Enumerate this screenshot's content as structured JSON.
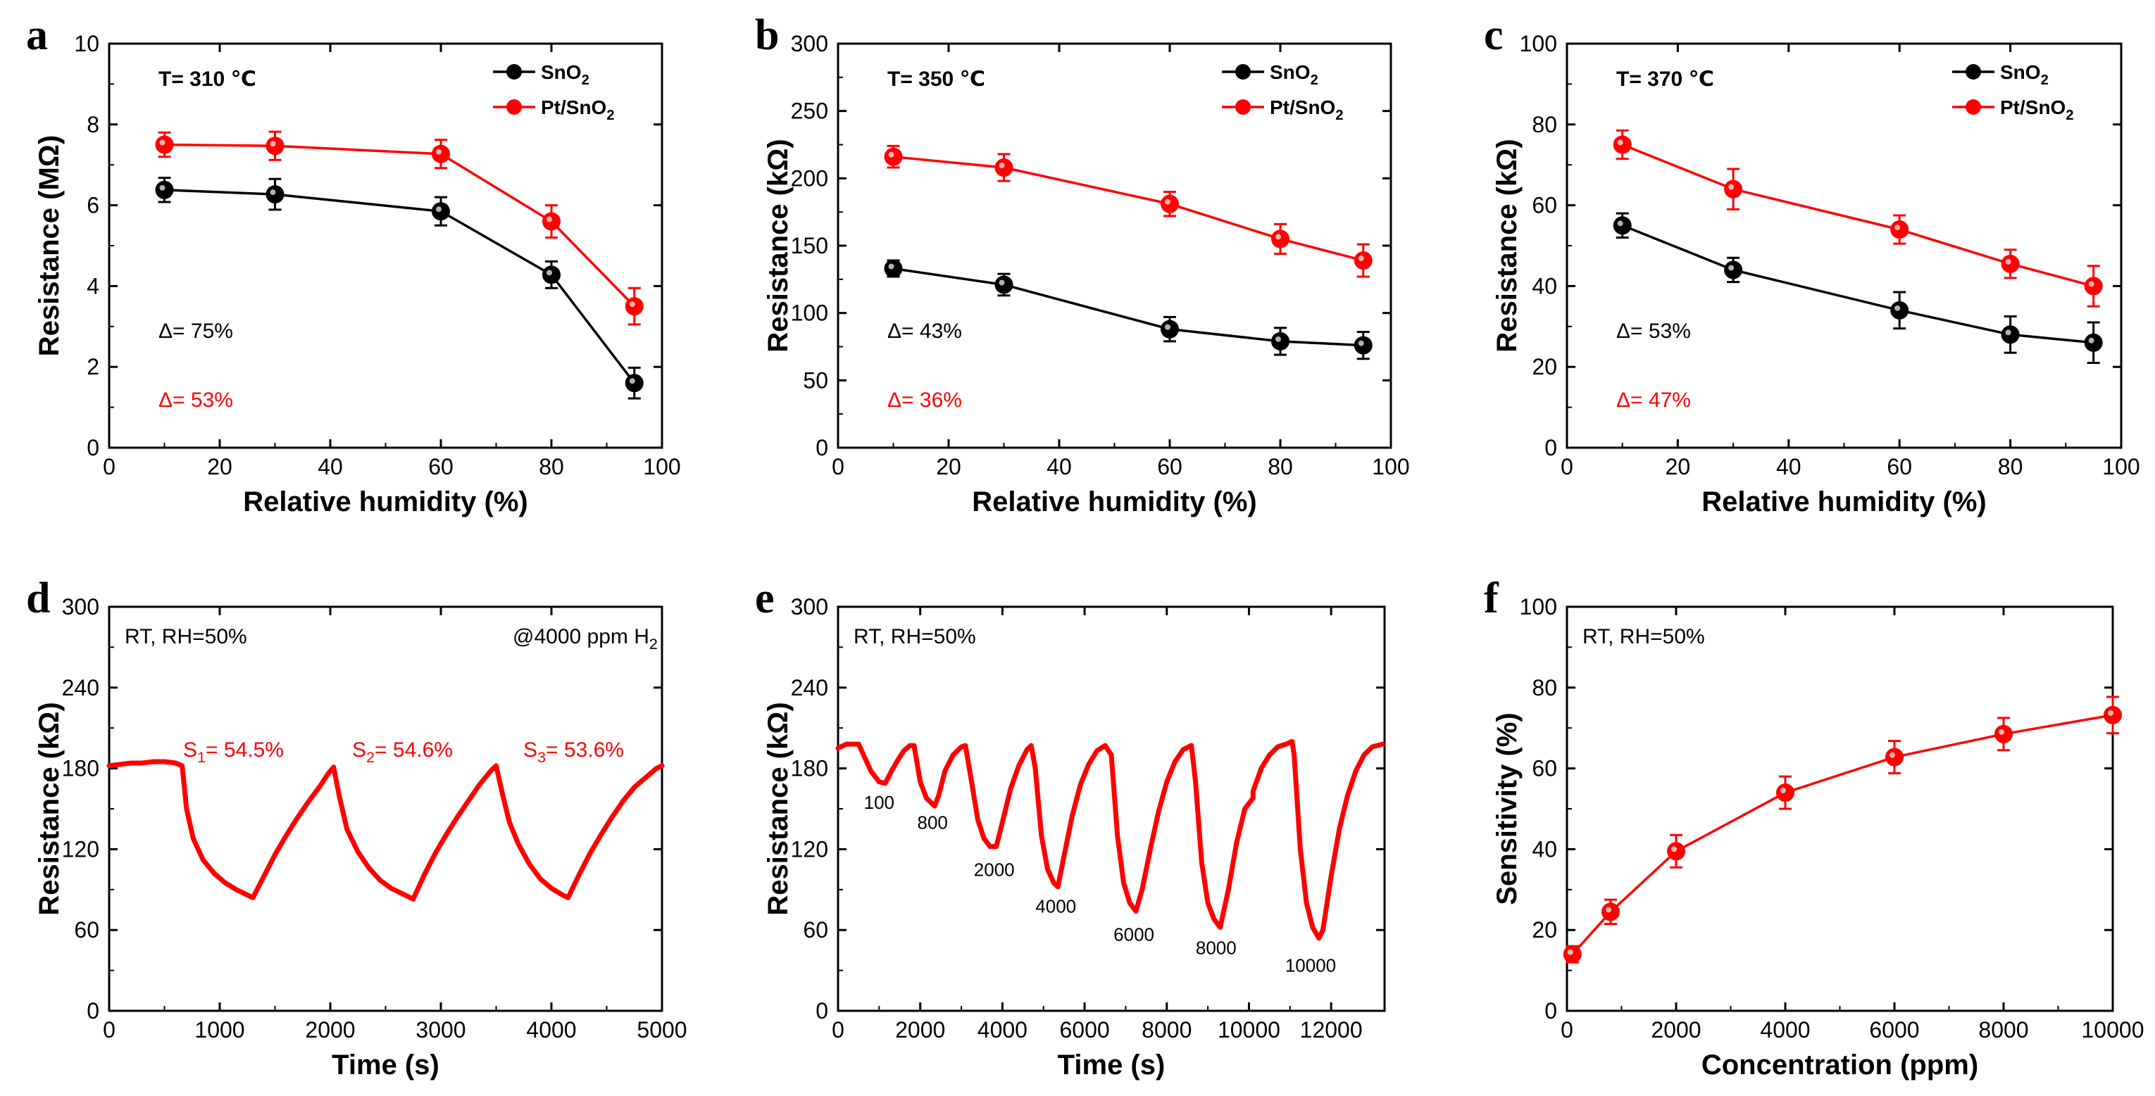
{
  "colors": {
    "snO2": "#000000",
    "ptSnO2": "#ff0000"
  },
  "chart_data": [
    {
      "id": "a",
      "panel_label": "a",
      "type": "line",
      "xlabel": "Relative humidity (%)",
      "ylabel": "Resistance (MΩ)",
      "xlim": [
        0,
        100
      ],
      "ylim": [
        0,
        10
      ],
      "xticks": [
        "0",
        "20",
        "40",
        "60",
        "80",
        "100"
      ],
      "yticks": [
        "0",
        "2",
        "4",
        "6",
        "8",
        "10"
      ],
      "condition": "T= 310 ℃",
      "x": [
        10,
        30,
        60,
        80,
        95
      ],
      "series": [
        {
          "name": "SnO2",
          "legend_main": "SnO",
          "legend_sub": "2",
          "color": "#000000",
          "values": [
            6.38,
            6.27,
            5.85,
            4.28,
            1.6
          ],
          "errors": [
            0.3,
            0.38,
            0.35,
            0.33,
            0.38
          ]
        },
        {
          "name": "Pt/SnO2",
          "legend_main": "Pt/SnO",
          "legend_sub": "2",
          "color": "#ff0000",
          "values": [
            7.5,
            7.47,
            7.27,
            5.6,
            3.5
          ],
          "errors": [
            0.3,
            0.35,
            0.35,
            0.4,
            0.45
          ]
        }
      ],
      "annotations": [
        {
          "text": "Δ= 75%",
          "color": "#000000"
        },
        {
          "text": "Δ= 53%",
          "color": "#ff0000"
        }
      ]
    },
    {
      "id": "b",
      "panel_label": "b",
      "type": "line",
      "xlabel": "Relative humidity (%)",
      "ylabel": "Resistance (kΩ)",
      "xlim": [
        0,
        100
      ],
      "ylim": [
        0,
        300
      ],
      "xticks": [
        "0",
        "20",
        "40",
        "60",
        "80",
        "100"
      ],
      "yticks": [
        "0",
        "50",
        "100",
        "150",
        "200",
        "250",
        "300"
      ],
      "condition": "T= 350 ℃",
      "x": [
        10,
        30,
        60,
        80,
        95
      ],
      "series": [
        {
          "name": "SnO2",
          "legend_main": "SnO",
          "legend_sub": "2",
          "color": "#000000",
          "values": [
            133,
            121,
            88,
            79,
            76
          ],
          "errors": [
            6,
            8,
            9,
            10,
            10
          ]
        },
        {
          "name": "Pt/SnO2",
          "legend_main": "Pt/SnO",
          "legend_sub": "2",
          "color": "#ff0000",
          "values": [
            216,
            208,
            181,
            155,
            139
          ],
          "errors": [
            8,
            10,
            9,
            11,
            12
          ]
        }
      ],
      "annotations": [
        {
          "text": "Δ= 43%",
          "color": "#000000"
        },
        {
          "text": "Δ= 36%",
          "color": "#ff0000"
        }
      ]
    },
    {
      "id": "c",
      "panel_label": "c",
      "type": "line",
      "xlabel": "Relative humidity (%)",
      "ylabel": "Resistance (kΩ)",
      "xlim": [
        0,
        100
      ],
      "ylim": [
        0,
        100
      ],
      "xticks": [
        "0",
        "20",
        "40",
        "60",
        "80",
        "100"
      ],
      "yticks": [
        "0",
        "20",
        "40",
        "60",
        "80",
        "100"
      ],
      "condition": "T= 370 ℃",
      "x": [
        10,
        30,
        60,
        80,
        95
      ],
      "series": [
        {
          "name": "SnO2",
          "legend_main": "SnO",
          "legend_sub": "2",
          "color": "#000000",
          "values": [
            55,
            44,
            34,
            28,
            26
          ],
          "errors": [
            3,
            3,
            4.5,
            4.5,
            5
          ]
        },
        {
          "name": "Pt/SnO2",
          "legend_main": "Pt/SnO",
          "legend_sub": "2",
          "color": "#ff0000",
          "values": [
            75,
            64,
            54,
            45.5,
            40
          ],
          "errors": [
            3.5,
            5,
            3.5,
            3.5,
            5
          ]
        }
      ],
      "annotations": [
        {
          "text": "Δ= 53%",
          "color": "#000000"
        },
        {
          "text": "Δ= 47%",
          "color": "#ff0000"
        }
      ]
    },
    {
      "id": "d",
      "panel_label": "d",
      "type": "line",
      "xlabel": "Time (s)",
      "ylabel": "Resistance (kΩ)",
      "xlim": [
        0,
        5000
      ],
      "ylim": [
        0,
        300
      ],
      "xticks": [
        "0",
        "1000",
        "2000",
        "3000",
        "4000",
        "5000"
      ],
      "yticks": [
        "0",
        "60",
        "120",
        "180",
        "240",
        "300"
      ],
      "condition": "RT, RH=50%",
      "condition_right": "@4000 ppm H",
      "condition_right_sub": "2",
      "color": "#ff0000",
      "sensitivity_labels": [
        {
          "pre": "S",
          "sub": "1",
          "post": "= 54.5%"
        },
        {
          "pre": "S",
          "sub": "2",
          "post": "= 54.6%"
        },
        {
          "pre": "S",
          "sub": "3",
          "post": "= 53.6%"
        }
      ],
      "curve": [
        [
          0,
          182
        ],
        [
          100,
          183
        ],
        [
          200,
          184
        ],
        [
          300,
          184
        ],
        [
          400,
          185
        ],
        [
          500,
          185
        ],
        [
          600,
          184
        ],
        [
          660,
          182
        ],
        [
          700,
          150
        ],
        [
          760,
          128
        ],
        [
          850,
          112
        ],
        [
          950,
          102
        ],
        [
          1050,
          95
        ],
        [
          1150,
          90
        ],
        [
          1250,
          86
        ],
        [
          1300,
          84
        ],
        [
          1400,
          100
        ],
        [
          1500,
          116
        ],
        [
          1600,
          130
        ],
        [
          1700,
          143
        ],
        [
          1800,
          155
        ],
        [
          1900,
          166
        ],
        [
          1980,
          176
        ],
        [
          2030,
          181
        ],
        [
          2080,
          160
        ],
        [
          2150,
          135
        ],
        [
          2250,
          118
        ],
        [
          2350,
          106
        ],
        [
          2450,
          97
        ],
        [
          2550,
          91
        ],
        [
          2650,
          87
        ],
        [
          2750,
          83
        ],
        [
          2850,
          101
        ],
        [
          2950,
          117
        ],
        [
          3050,
          131
        ],
        [
          3150,
          144
        ],
        [
          3250,
          156
        ],
        [
          3350,
          168
        ],
        [
          3450,
          178
        ],
        [
          3500,
          182
        ],
        [
          3560,
          160
        ],
        [
          3620,
          140
        ],
        [
          3700,
          124
        ],
        [
          3800,
          109
        ],
        [
          3900,
          98
        ],
        [
          4000,
          91
        ],
        [
          4100,
          86
        ],
        [
          4150,
          84
        ],
        [
          4250,
          101
        ],
        [
          4350,
          117
        ],
        [
          4450,
          131
        ],
        [
          4550,
          144
        ],
        [
          4650,
          156
        ],
        [
          4750,
          166
        ],
        [
          4850,
          173
        ],
        [
          4950,
          180
        ],
        [
          5000,
          182
        ]
      ]
    },
    {
      "id": "e",
      "panel_label": "e",
      "type": "line",
      "xlabel": "Time (s)",
      "ylabel": "Resistance (kΩ)",
      "xlim": [
        0,
        13300
      ],
      "ylim": [
        0,
        300
      ],
      "xticks": [
        "0",
        "2000",
        "4000",
        "6000",
        "8000",
        "10000",
        "12000"
      ],
      "yticks": [
        "0",
        "60",
        "120",
        "180",
        "240",
        "300"
      ],
      "condition": "RT, RH=50%",
      "color": "#ff0000",
      "concentration_labels": [
        {
          "text": "100",
          "x": 1000,
          "y": 150
        },
        {
          "text": "800",
          "x": 2300,
          "y": 135
        },
        {
          "text": "2000",
          "x": 3800,
          "y": 100
        },
        {
          "text": "4000",
          "x": 5300,
          "y": 73
        },
        {
          "text": "6000",
          "x": 7200,
          "y": 52
        },
        {
          "text": "8000",
          "x": 9200,
          "y": 42
        },
        {
          "text": "10000",
          "x": 11500,
          "y": 29
        }
      ],
      "curve": [
        [
          0,
          195
        ],
        [
          200,
          198
        ],
        [
          500,
          198
        ],
        [
          650,
          188
        ],
        [
          800,
          178
        ],
        [
          1000,
          170
        ],
        [
          1150,
          169
        ],
        [
          1300,
          178
        ],
        [
          1450,
          186
        ],
        [
          1600,
          193
        ],
        [
          1750,
          197
        ],
        [
          1850,
          197
        ],
        [
          2000,
          170
        ],
        [
          2150,
          158
        ],
        [
          2350,
          152
        ],
        [
          2450,
          160
        ],
        [
          2600,
          178
        ],
        [
          2800,
          190
        ],
        [
          3000,
          196
        ],
        [
          3100,
          197
        ],
        [
          3250,
          170
        ],
        [
          3400,
          142
        ],
        [
          3550,
          128
        ],
        [
          3700,
          122
        ],
        [
          3850,
          122
        ],
        [
          4000,
          140
        ],
        [
          4200,
          165
        ],
        [
          4400,
          182
        ],
        [
          4600,
          194
        ],
        [
          4700,
          197
        ],
        [
          4800,
          180
        ],
        [
          4950,
          130
        ],
        [
          5100,
          105
        ],
        [
          5250,
          95
        ],
        [
          5350,
          92
        ],
        [
          5500,
          115
        ],
        [
          5700,
          145
        ],
        [
          5900,
          168
        ],
        [
          6100,
          183
        ],
        [
          6300,
          193
        ],
        [
          6500,
          197
        ],
        [
          6650,
          190
        ],
        [
          6800,
          130
        ],
        [
          6950,
          95
        ],
        [
          7100,
          80
        ],
        [
          7250,
          74
        ],
        [
          7400,
          90
        ],
        [
          7600,
          120
        ],
        [
          7800,
          148
        ],
        [
          8000,
          170
        ],
        [
          8200,
          185
        ],
        [
          8400,
          194
        ],
        [
          8600,
          197
        ],
        [
          8700,
          170
        ],
        [
          8850,
          110
        ],
        [
          9000,
          80
        ],
        [
          9150,
          68
        ],
        [
          9300,
          62
        ],
        [
          9500,
          90
        ],
        [
          9700,
          125
        ],
        [
          9900,
          150
        ],
        [
          10100,
          158
        ],
        [
          10100,
          163
        ],
        [
          10300,
          180
        ],
        [
          10500,
          190
        ],
        [
          10700,
          196
        ],
        [
          10900,
          198
        ],
        [
          11050,
          200
        ],
        [
          11100,
          190
        ],
        [
          11250,
          120
        ],
        [
          11400,
          80
        ],
        [
          11550,
          62
        ],
        [
          11700,
          54
        ],
        [
          11800,
          60
        ],
        [
          12000,
          100
        ],
        [
          12200,
          135
        ],
        [
          12400,
          160
        ],
        [
          12600,
          178
        ],
        [
          12800,
          190
        ],
        [
          13000,
          196
        ],
        [
          13250,
          198
        ]
      ]
    },
    {
      "id": "f",
      "panel_label": "f",
      "type": "line",
      "xlabel": "Concentration (ppm)",
      "ylabel": "Sensitivity (%)",
      "xlim": [
        0,
        10000
      ],
      "ylim": [
        0,
        100
      ],
      "xticks": [
        "0",
        "2000",
        "4000",
        "6000",
        "8000",
        "10000"
      ],
      "yticks": [
        "0",
        "20",
        "40",
        "60",
        "80",
        "100"
      ],
      "condition": "RT, RH=50%",
      "x": [
        100,
        800,
        2000,
        4000,
        6000,
        8000,
        10000
      ],
      "series": [
        {
          "name": "Pt/SnO2",
          "color": "#ff0000",
          "values": [
            14,
            24.5,
            39.5,
            54,
            62.8,
            68.5,
            73.2
          ],
          "errors": [
            2,
            3,
            4,
            4,
            4,
            4,
            4.5
          ]
        }
      ]
    }
  ]
}
